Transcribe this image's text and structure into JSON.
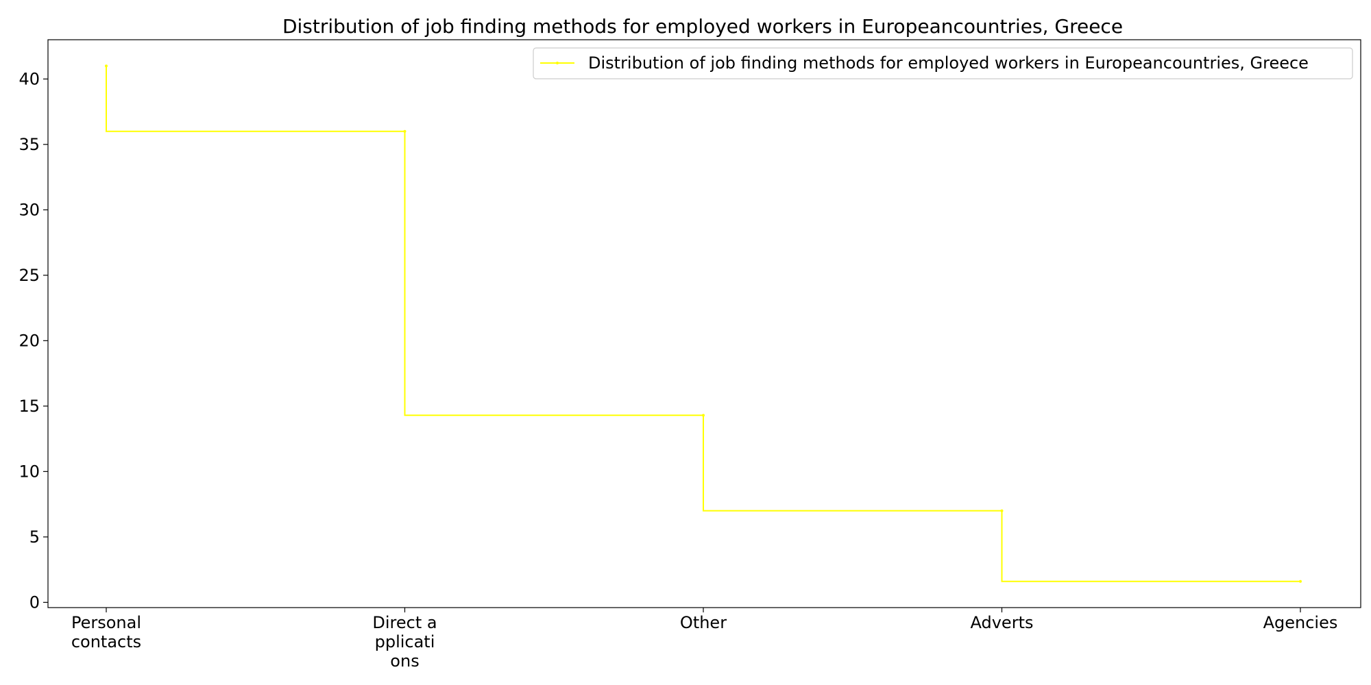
{
  "chart_data": {
    "type": "line",
    "style": "step",
    "title": "Distribution of job finding methods for employed workers in Europeancountries, Greece",
    "xlabel": "",
    "ylabel": "",
    "categories": [
      [
        "Personal",
        "contacts"
      ],
      [
        "Direct a",
        "pplicati",
        "ons"
      ],
      [
        "Other"
      ],
      [
        "Adverts"
      ],
      [
        "Agencies"
      ]
    ],
    "series": [
      {
        "name": "Distribution of job finding methods for employed workers in Europeancountries, Greece",
        "values": [
          41.0,
          36.0,
          14.3,
          7.0,
          1.6
        ],
        "color": "#ffff00"
      }
    ],
    "yticks": [
      0,
      5,
      10,
      15,
      20,
      25,
      30,
      35,
      40
    ],
    "ylim": [
      -0.4,
      43.0
    ],
    "grid": false,
    "legend_position": "top-right"
  }
}
